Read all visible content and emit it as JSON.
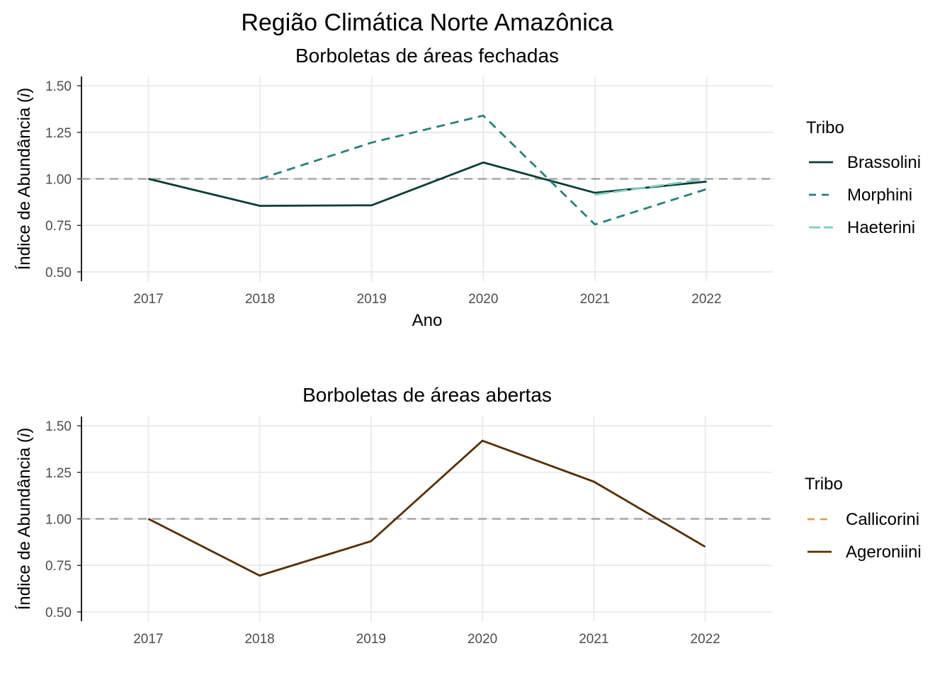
{
  "figure": {
    "title": "Região Climática Norte Amazônica",
    "colors": {
      "Brassolini": "#0b3d37",
      "Morphini": "#2a7f7a",
      "Haeterini": "#7fcdbb",
      "Callicorini": "#d9a352",
      "Ageroniini": "#543005",
      "reference": "#a6a6a6",
      "grid": "#ebebeb"
    }
  },
  "chart_data": [
    {
      "type": "line",
      "title": "Borboletas de áreas fechadas",
      "xlabel": "Ano",
      "ylabel_main": "Índice de Abundância (",
      "ylabel_italic": "i",
      "ylabel_end": ")",
      "x": [
        2017,
        2018,
        2019,
        2020,
        2021,
        2022
      ],
      "x_tick_labels": [
        "2017",
        "2018",
        "2019",
        "2020",
        "2021",
        "2022"
      ],
      "y_ticks": [
        0.5,
        0.75,
        1.0,
        1.25,
        1.5
      ],
      "y_tick_labels": [
        "0.50",
        "0.75",
        "1.00",
        "1.25",
        "1.50"
      ],
      "ylim": [
        0.45,
        1.55
      ],
      "reference_line": 1.0,
      "legend_title": "Tribo",
      "legend_position": "right",
      "series": [
        {
          "name": "Brassolini",
          "dash": "solid",
          "values": [
            1.0,
            0.855,
            0.858,
            1.088,
            0.925,
            0.985
          ]
        },
        {
          "name": "Morphini",
          "dash": "dashed",
          "values": [
            null,
            1.0,
            1.195,
            1.34,
            0.755,
            0.945
          ]
        },
        {
          "name": "Haeterini",
          "dash": "longdash",
          "values": [
            null,
            null,
            null,
            null,
            0.915,
            1.0
          ]
        }
      ]
    },
    {
      "type": "line",
      "title": "Borboletas de áreas abertas",
      "xlabel": "",
      "ylabel_main": "Índice de Abundância (",
      "ylabel_italic": "i",
      "ylabel_end": ")",
      "x": [
        2017,
        2018,
        2019,
        2020,
        2021,
        2022
      ],
      "x_tick_labels": [
        "2017",
        "2018",
        "2019",
        "2020",
        "2021",
        "2022"
      ],
      "y_ticks": [
        0.5,
        0.75,
        1.0,
        1.25,
        1.5
      ],
      "y_tick_labels": [
        "0.50",
        "0.75",
        "1.00",
        "1.25",
        "1.50"
      ],
      "ylim": [
        0.45,
        1.55
      ],
      "reference_line": 1.0,
      "legend_title": "Tribo",
      "legend_position": "right",
      "series": [
        {
          "name": "Callicorini",
          "dash": "dashed",
          "values": [
            null,
            null,
            null,
            null,
            null,
            null
          ]
        },
        {
          "name": "Ageroniini",
          "dash": "solid",
          "values": [
            1.0,
            0.695,
            0.88,
            1.42,
            1.2,
            0.85
          ]
        }
      ]
    }
  ]
}
